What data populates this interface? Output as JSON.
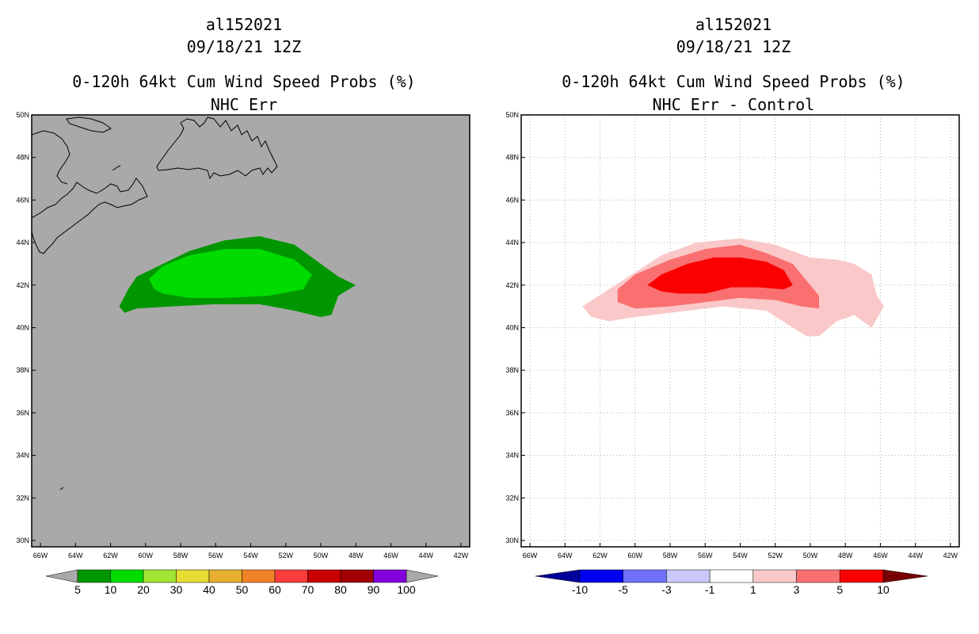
{
  "chart_data": [
    {
      "type": "heatmap",
      "storm_id": "al152021",
      "date": "09/18/21 12Z",
      "title": "0-120h 64kt Cum Wind Speed Probs (%)",
      "subtitle": "NHC Err",
      "x_ticks": [
        "66W",
        "64W",
        "62W",
        "60W",
        "58W",
        "56W",
        "54W",
        "52W",
        "50W",
        "48W",
        "46W",
        "44W",
        "42W"
      ],
      "y_ticks": [
        "30N",
        "32N",
        "34N",
        "36N",
        "38N",
        "40N",
        "42N",
        "44N",
        "46N",
        "48N",
        "50N"
      ],
      "lon_range": [
        -66.5,
        -41.5
      ],
      "lat_range": [
        29.7,
        50
      ],
      "background_color": "#a9a9a9",
      "grid": false,
      "contours": [
        {
          "level": "5-10",
          "color": "#009600",
          "lonlat": [
            [
              -61.5,
              41.0
            ],
            [
              -61.0,
              41.8
            ],
            [
              -60.5,
              42.4
            ],
            [
              -59.0,
              43.0
            ],
            [
              -57.5,
              43.6
            ],
            [
              -55.5,
              44.1
            ],
            [
              -53.5,
              44.3
            ],
            [
              -51.5,
              43.9
            ],
            [
              -50.0,
              43.0
            ],
            [
              -49.0,
              42.4
            ],
            [
              -48.0,
              42.0
            ],
            [
              -49.0,
              41.5
            ],
            [
              -49.4,
              40.6
            ],
            [
              -50.0,
              40.5
            ],
            [
              -51.5,
              40.8
            ],
            [
              -53.5,
              41.1
            ],
            [
              -56.0,
              41.1
            ],
            [
              -58.5,
              41.0
            ],
            [
              -60.5,
              40.9
            ],
            [
              -61.2,
              40.7
            ]
          ]
        },
        {
          "level": "10-20",
          "color": "#00dc00",
          "lonlat": [
            [
              -59.8,
              42.3
            ],
            [
              -59.0,
              42.9
            ],
            [
              -57.5,
              43.4
            ],
            [
              -55.5,
              43.7
            ],
            [
              -53.5,
              43.7
            ],
            [
              -51.5,
              43.2
            ],
            [
              -50.5,
              42.5
            ],
            [
              -51.0,
              41.8
            ],
            [
              -53.0,
              41.5
            ],
            [
              -55.5,
              41.4
            ],
            [
              -57.5,
              41.4
            ],
            [
              -59.0,
              41.6
            ],
            [
              -59.5,
              41.8
            ]
          ]
        }
      ],
      "colorbar": {
        "labels": [
          "5",
          "10",
          "20",
          "30",
          "40",
          "50",
          "60",
          "70",
          "80",
          "90",
          "100"
        ],
        "colors": [
          "#009600",
          "#00dc00",
          "#a0e632",
          "#e6dc32",
          "#e6af2d",
          "#f08228",
          "#fa3c3c",
          "#c80000",
          "#a00000",
          "#8200dc"
        ],
        "low_color": "#a9a9a9",
        "high_color": "#a9a9a9"
      }
    },
    {
      "type": "heatmap",
      "storm_id": "al152021",
      "date": "09/18/21 12Z",
      "title": "0-120h 64kt Cum Wind Speed Probs (%)",
      "subtitle": "NHC Err - Control",
      "x_ticks": [
        "66W",
        "64W",
        "62W",
        "60W",
        "58W",
        "56W",
        "54W",
        "52W",
        "50W",
        "48W",
        "46W",
        "44W",
        "42W"
      ],
      "y_ticks": [
        "30N",
        "32N",
        "34N",
        "36N",
        "38N",
        "40N",
        "42N",
        "44N",
        "46N",
        "48N",
        "50N"
      ],
      "lon_range": [
        -66.5,
        -41.5
      ],
      "lat_range": [
        29.7,
        50
      ],
      "background_color": "#ffffff",
      "grid": true,
      "contours": [
        {
          "level": "1-3",
          "color": "#fac8c8",
          "lonlat": [
            [
              -63.0,
              41.0
            ],
            [
              -61.5,
              41.8
            ],
            [
              -60.0,
              42.6
            ],
            [
              -58.5,
              43.4
            ],
            [
              -56.5,
              44.0
            ],
            [
              -54.0,
              44.2
            ],
            [
              -52.0,
              43.9
            ],
            [
              -50.0,
              43.3
            ],
            [
              -48.5,
              43.2
            ],
            [
              -47.5,
              43.0
            ],
            [
              -46.5,
              42.5
            ],
            [
              -46.2,
              41.5
            ],
            [
              -45.8,
              41.0
            ],
            [
              -46.5,
              40.0
            ],
            [
              -47.5,
              40.6
            ],
            [
              -48.5,
              40.3
            ],
            [
              -49.5,
              39.6
            ],
            [
              -50.2,
              39.6
            ],
            [
              -51.0,
              40.0
            ],
            [
              -52.5,
              40.8
            ],
            [
              -55.0,
              41.0
            ],
            [
              -58.0,
              40.7
            ],
            [
              -60.0,
              40.5
            ],
            [
              -61.5,
              40.3
            ],
            [
              -62.5,
              40.5
            ]
          ]
        },
        {
          "level": "3-5",
          "color": "#fa7070",
          "lonlat": [
            [
              -61.0,
              41.8
            ],
            [
              -60.0,
              42.5
            ],
            [
              -58.0,
              43.2
            ],
            [
              -56.0,
              43.7
            ],
            [
              -54.0,
              43.9
            ],
            [
              -52.5,
              43.5
            ],
            [
              -51.0,
              43.0
            ],
            [
              -50.0,
              42.0
            ],
            [
              -49.5,
              41.5
            ],
            [
              -49.5,
              40.9
            ],
            [
              -50.5,
              41.0
            ],
            [
              -52.0,
              41.3
            ],
            [
              -54.0,
              41.4
            ],
            [
              -56.0,
              41.2
            ],
            [
              -58.0,
              41.0
            ],
            [
              -60.0,
              40.9
            ],
            [
              -61.0,
              41.2
            ]
          ]
        },
        {
          "level": "5-10",
          "color": "#fa0000",
          "lonlat": [
            [
              -59.3,
              42.0
            ],
            [
              -58.5,
              42.5
            ],
            [
              -57.0,
              43.0
            ],
            [
              -55.5,
              43.3
            ],
            [
              -54.0,
              43.3
            ],
            [
              -52.5,
              43.1
            ],
            [
              -51.5,
              42.7
            ],
            [
              -51.0,
              42.0
            ],
            [
              -51.5,
              41.8
            ],
            [
              -53.0,
              41.9
            ],
            [
              -54.5,
              41.9
            ],
            [
              -56.0,
              41.6
            ],
            [
              -57.5,
              41.6
            ],
            [
              -58.5,
              41.7
            ]
          ]
        }
      ],
      "colorbar": {
        "labels": [
          "-10",
          "-5",
          "-3",
          "-1",
          "1",
          "3",
          "5",
          "10"
        ],
        "colors": [
          "#0000f0",
          "#7070fa",
          "#c8c8fa",
          "#ffffff",
          "#fac8c8",
          "#fa7070",
          "#fa0000"
        ],
        "low_color": "#00009b",
        "high_color": "#780000"
      }
    }
  ]
}
